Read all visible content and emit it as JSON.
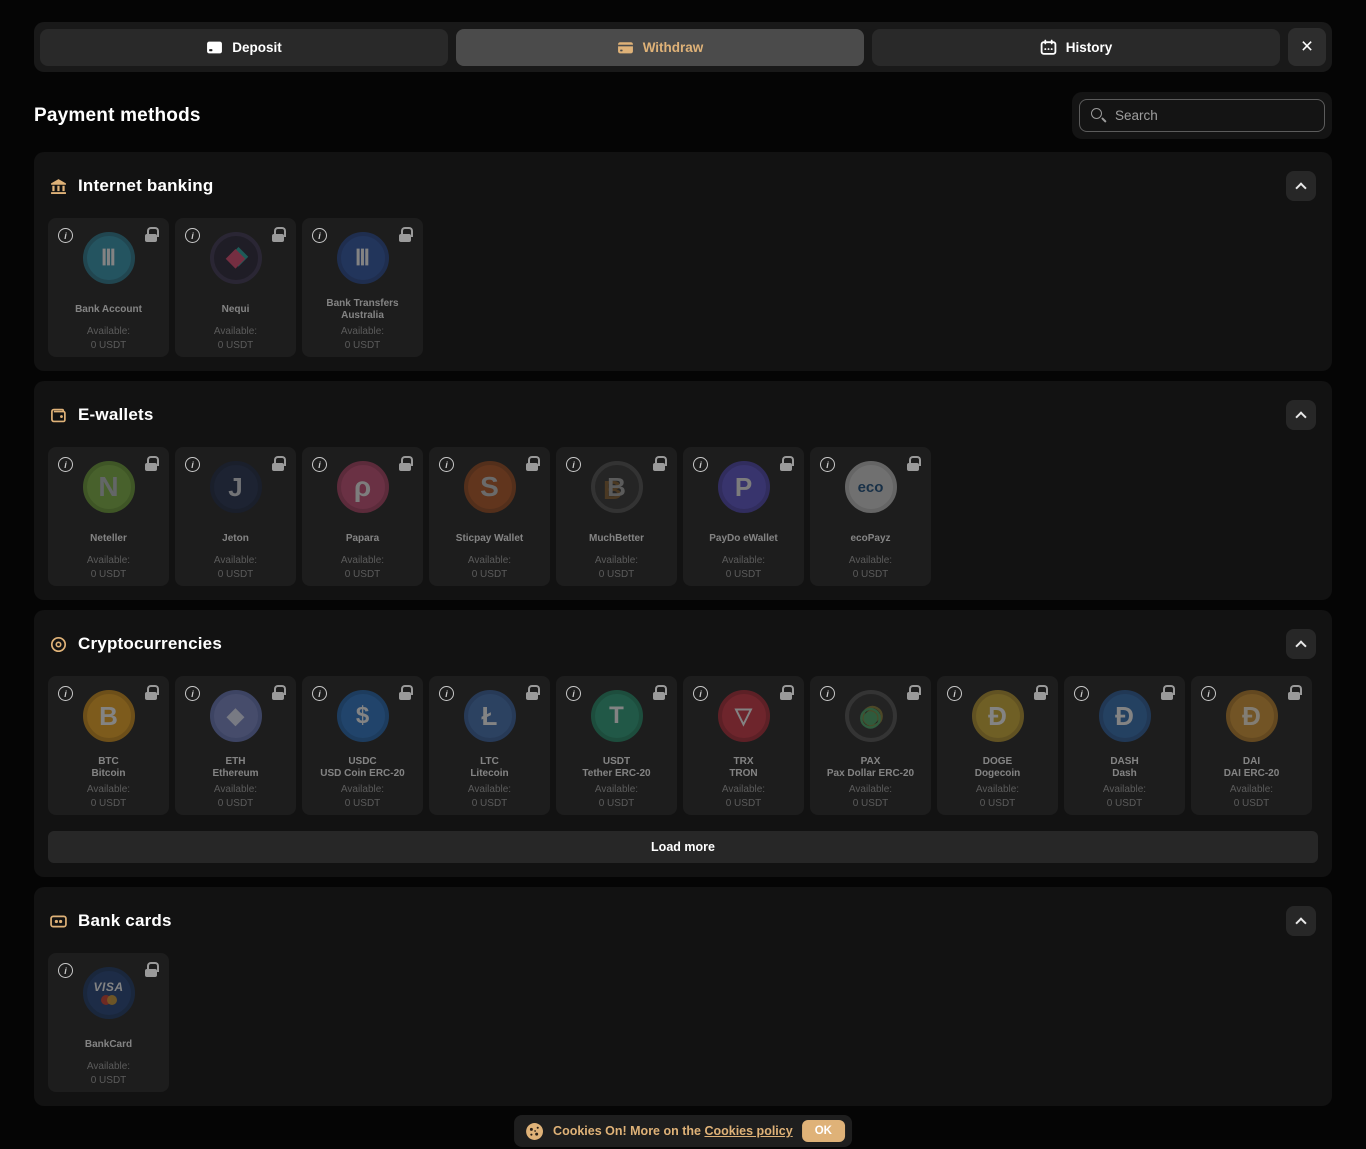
{
  "icons": {
    "close": "×",
    "info": "i"
  },
  "colors": {
    "accent": "#dfb278",
    "page_bg": "#050505",
    "section_bg": "#121212",
    "card_bg": "#1d1d1d",
    "tab_active_bg": "#4b4b4b"
  },
  "tabs": [
    {
      "label": "Deposit",
      "icon": "deposit",
      "active": false
    },
    {
      "label": "Withdraw",
      "icon": "withdraw",
      "active": true
    },
    {
      "label": "History",
      "icon": "history",
      "active": false
    }
  ],
  "page_title": "Payment methods",
  "search": {
    "placeholder": "Search"
  },
  "sections": [
    {
      "id": "internet-banking",
      "icon": "bank",
      "title": "Internet banking",
      "cards": [
        {
          "name": "Bank Account",
          "available_label": "Available:",
          "available_value": "0 USDT",
          "logo": {
            "bg": "#2e98b3",
            "ring": "#27798f",
            "text": "Ⅲ",
            "color": "#ffffff",
            "size": 22
          }
        },
        {
          "name": "Nequi",
          "available_label": "Available:",
          "available_value": "0 USDT",
          "logo": {
            "bg": "#231d33",
            "ring": "#3a3350",
            "text": "◆",
            "color": "#e0446e",
            "size": 24,
            "shadow": "3px -2px 0 rgba(32,190,180,0.85)"
          }
        },
        {
          "name": "Bank Transfers\nAustralia",
          "available_label": "Available:",
          "available_value": "0 USDT",
          "logo": {
            "bg": "#2a52a8",
            "ring": "#22448c",
            "text": "Ⅲ",
            "color": "#ffffff",
            "size": 22
          }
        }
      ]
    },
    {
      "id": "e-wallets",
      "icon": "wallet",
      "title": "E-wallets",
      "cards": [
        {
          "name": "Neteller",
          "available_label": "Available:",
          "available_value": "0 USDT",
          "logo": {
            "bg": "#7db53f",
            "ring": "#699c33",
            "text": "N",
            "color": "#b9bfc2",
            "size": 28
          }
        },
        {
          "name": "Jeton",
          "available_label": "Available:",
          "available_value": "0 USDT",
          "logo": {
            "bg": "#1d2b4d",
            "ring": "#17223d",
            "text": "J",
            "color": "#d9dce3",
            "size": 26
          }
        },
        {
          "name": "Papara",
          "available_label": "Available:",
          "available_value": "0 USDT",
          "logo": {
            "bg": "#c84a74",
            "ring": "#a93c60",
            "text": "ρ",
            "color": "#f2f2f2",
            "size": 28
          }
        },
        {
          "name": "Sticpay Wallet",
          "available_label": "Available:",
          "available_value": "0 USDT",
          "logo": {
            "bg": "#b5541f",
            "ring": "#96451a",
            "text": "S",
            "color": "#c9c9c9",
            "size": 28
          }
        },
        {
          "name": "MuchBetter",
          "available_label": "Available:",
          "available_value": "0 USDT",
          "logo": {
            "bg": "#2f2f2f",
            "ring": "#4f4f4f",
            "text": "B",
            "color": "#a8a8a8",
            "size": 26,
            "shadow": "-4px 3px 0 rgba(200,130,40,0.55)"
          }
        },
        {
          "name": "PayDo eWallet",
          "available_label": "Available:",
          "available_value": "0 USDT",
          "logo": {
            "bg": "#5a50cf",
            "ring": "#4a41ad",
            "text": "P",
            "color": "#f0f0f0",
            "size": 26
          }
        },
        {
          "name": "ecoPayz",
          "available_label": "Available:",
          "available_value": "0 USDT",
          "logo": {
            "bg": "#d6d6d6",
            "ring": "#bcbcbc",
            "text": "eco",
            "color": "#14487a",
            "size": 15
          }
        }
      ]
    },
    {
      "id": "cryptocurrencies",
      "icon": "coin",
      "title": "Cryptocurrencies",
      "load_more": "Load more",
      "cards": [
        {
          "name": "BTC\nBitcoin",
          "available_label": "Available:",
          "available_value": "0 USDT",
          "logo": {
            "bg": "#f2a71b",
            "ring": "#cf8d15",
            "text": "B",
            "color": "#ffffff",
            "size": 26
          }
        },
        {
          "name": "ETH\nEthereum",
          "available_label": "Available:",
          "available_value": "0 USDT",
          "logo": {
            "bg": "#7986cb",
            "ring": "#6574b8",
            "text": "◆",
            "color": "#e8ecff",
            "size": 22
          }
        },
        {
          "name": "USDC\nUSD Coin ERC-20",
          "available_label": "Available:",
          "available_value": "0 USDT",
          "logo": {
            "bg": "#2775ca",
            "ring": "#1f63ad",
            "text": "$",
            "color": "#ffffff",
            "size": 24
          }
        },
        {
          "name": "LTC\nLitecoin",
          "available_label": "Available:",
          "available_value": "0 USDT",
          "logo": {
            "bg": "#3f6fb5",
            "ring": "#345d9d",
            "text": "Ł",
            "color": "#ffffff",
            "size": 26
          }
        },
        {
          "name": "USDT\nTether ERC-20",
          "available_label": "Available:",
          "available_value": "0 USDT",
          "logo": {
            "bg": "#26a17b",
            "ring": "#1f8764",
            "text": "T",
            "color": "#ffffff",
            "size": 24
          }
        },
        {
          "name": "TRX\nTRON",
          "available_label": "Available:",
          "available_value": "0 USDT",
          "logo": {
            "bg": "#d12f3f",
            "ring": "#ab2533",
            "text": "▽",
            "color": "#ffffff",
            "size": 22
          }
        },
        {
          "name": "PAX\nPax Dollar ERC-20",
          "available_label": "Available:",
          "available_value": "0 USDT",
          "logo": {
            "bg": "#2b2b2b",
            "ring": "#505050",
            "text": "◉",
            "color": "#45a865",
            "size": 26,
            "shadow": "2px -2px 0 rgba(200,180,60,0.6)"
          }
        },
        {
          "name": "DOGE\nDogecoin",
          "available_label": "Available:",
          "available_value": "0 USDT",
          "logo": {
            "bg": "#d4af2f",
            "ring": "#b5932a",
            "text": "Ð",
            "color": "#ffffff",
            "size": 26
          }
        },
        {
          "name": "DASH\nDash",
          "available_label": "Available:",
          "available_value": "0 USDT",
          "logo": {
            "bg": "#2e6db5",
            "ring": "#27599a",
            "text": "Ð",
            "color": "#ffffff",
            "size": 26
          }
        },
        {
          "name": "DAI\nDAI ERC-20",
          "available_label": "Available:",
          "available_value": "0 USDT",
          "logo": {
            "bg": "#d9972f",
            "ring": "#b87e24",
            "text": "Ɖ",
            "color": "#fdf3df",
            "size": 26
          }
        }
      ]
    },
    {
      "id": "bank-cards",
      "icon": "card",
      "title": "Bank cards",
      "cards": [
        {
          "name": "BankCard",
          "available_label": "Available:",
          "available_value": "0 USDT",
          "logo": {
            "bg": "#1d3f7a",
            "ring": "#183463",
            "text": "VISA",
            "color": "#ffffff",
            "visa": true
          }
        }
      ]
    }
  ],
  "cookie_banner": {
    "text_before": "Cookies On! More on the ",
    "link_text": "Cookies policy",
    "ok_label": "OK"
  }
}
